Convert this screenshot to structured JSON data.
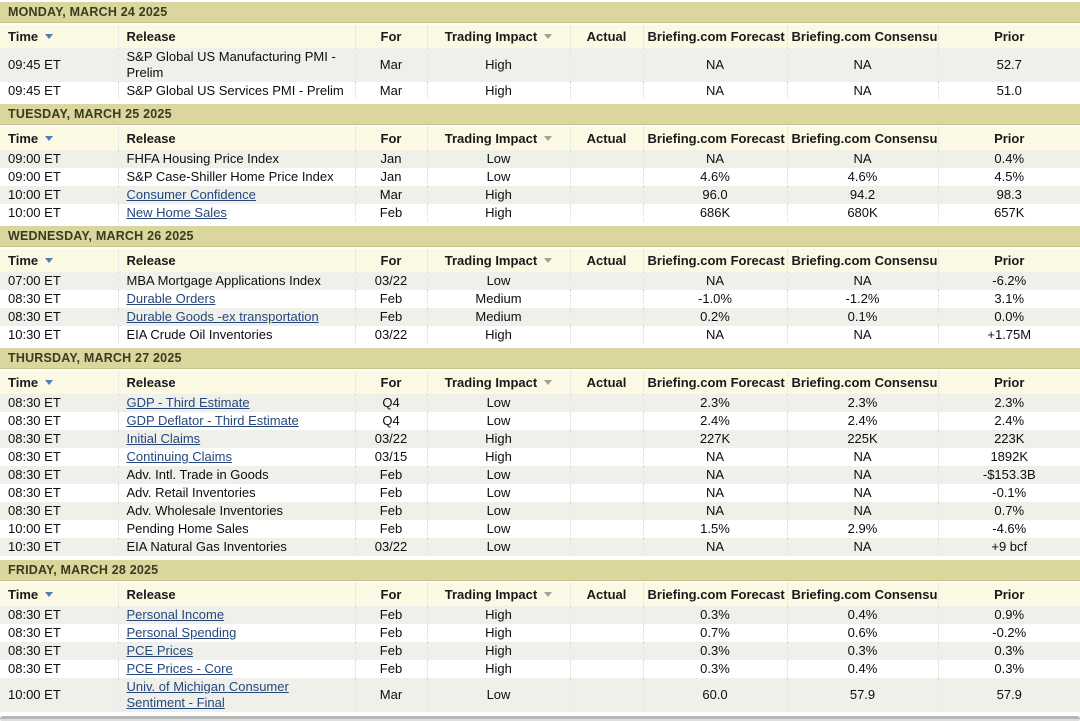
{
  "colors": {
    "day_bar_bg": "#dbd69d",
    "header_bg": "#fbf8e3",
    "row_alt_bg": "#f0f0ea",
    "link": "#26477d",
    "sort_arrow_active": "#4d7fb5",
    "sort_arrow_inactive": "#a0a096"
  },
  "table": {
    "columns": [
      {
        "id": "time",
        "label": "Time",
        "align": "left",
        "sortable": true,
        "arrow": "blue"
      },
      {
        "id": "release",
        "label": "Release",
        "align": "left",
        "sortable": false
      },
      {
        "id": "for",
        "label": "For",
        "align": "center",
        "sortable": false
      },
      {
        "id": "impact",
        "label": "Trading Impact",
        "align": "center",
        "sortable": true,
        "arrow": "gray"
      },
      {
        "id": "actual",
        "label": "Actual",
        "align": "center",
        "sortable": false
      },
      {
        "id": "forecast",
        "label": "Briefing.com Forecast",
        "align": "center",
        "sortable": false
      },
      {
        "id": "consensus",
        "label": "Briefing.com Consensus",
        "align": "center",
        "sortable": false
      },
      {
        "id": "prior",
        "label": "Prior",
        "align": "center",
        "sortable": false
      }
    ]
  },
  "days": [
    {
      "header": "MONDAY, MARCH 24 2025",
      "rows": [
        {
          "time": "09:45 ET",
          "release": "S&P Global US Manufacturing PMI - Prelim",
          "is_link": false,
          "for_period": "Mar",
          "impact": "High",
          "actual": "",
          "forecast": "NA",
          "consensus": "NA",
          "prior": "52.7"
        },
        {
          "time": "09:45 ET",
          "release": "S&P Global US Services PMI - Prelim",
          "is_link": false,
          "for_period": "Mar",
          "impact": "High",
          "actual": "",
          "forecast": "NA",
          "consensus": "NA",
          "prior": "51.0"
        }
      ]
    },
    {
      "header": "TUESDAY, MARCH 25 2025",
      "rows": [
        {
          "time": "09:00 ET",
          "release": "FHFA Housing Price Index",
          "is_link": false,
          "for_period": "Jan",
          "impact": "Low",
          "actual": "",
          "forecast": "NA",
          "consensus": "NA",
          "prior": "0.4%"
        },
        {
          "time": "09:00 ET",
          "release": "S&P Case-Shiller Home Price Index",
          "is_link": false,
          "for_period": "Jan",
          "impact": "Low",
          "actual": "",
          "forecast": "4.6%",
          "consensus": "4.6%",
          "prior": "4.5%"
        },
        {
          "time": "10:00 ET",
          "release": "Consumer Confidence",
          "is_link": true,
          "for_period": "Mar",
          "impact": "High",
          "actual": "",
          "forecast": "96.0",
          "consensus": "94.2",
          "prior": "98.3"
        },
        {
          "time": "10:00 ET",
          "release": "New Home Sales",
          "is_link": true,
          "for_period": "Feb",
          "impact": "High",
          "actual": "",
          "forecast": "686K",
          "consensus": "680K",
          "prior": "657K"
        }
      ]
    },
    {
      "header": "WEDNESDAY, MARCH 26 2025",
      "rows": [
        {
          "time": "07:00 ET",
          "release": "MBA Mortgage Applications Index",
          "is_link": false,
          "for_period": "03/22",
          "impact": "Low",
          "actual": "",
          "forecast": "NA",
          "consensus": "NA",
          "prior": "-6.2%"
        },
        {
          "time": "08:30 ET",
          "release": "Durable Orders",
          "is_link": true,
          "for_period": "Feb",
          "impact": "Medium",
          "actual": "",
          "forecast": "-1.0%",
          "consensus": "-1.2%",
          "prior": "3.1%"
        },
        {
          "time": "08:30 ET",
          "release": "Durable Goods -ex transportation",
          "is_link": true,
          "for_period": "Feb",
          "impact": "Medium",
          "actual": "",
          "forecast": "0.2%",
          "consensus": "0.1%",
          "prior": "0.0%"
        },
        {
          "time": "10:30 ET",
          "release": "EIA Crude Oil Inventories",
          "is_link": false,
          "for_period": "03/22",
          "impact": "High",
          "actual": "",
          "forecast": "NA",
          "consensus": "NA",
          "prior": "+1.75M"
        }
      ]
    },
    {
      "header": "THURSDAY, MARCH 27 2025",
      "rows": [
        {
          "time": "08:30 ET",
          "release": "GDP - Third Estimate",
          "is_link": true,
          "for_period": "Q4",
          "impact": "Low",
          "actual": "",
          "forecast": "2.3%",
          "consensus": "2.3%",
          "prior": "2.3%"
        },
        {
          "time": "08:30 ET",
          "release": "GDP Deflator - Third Estimate",
          "is_link": true,
          "for_period": "Q4",
          "impact": "Low",
          "actual": "",
          "forecast": "2.4%",
          "consensus": "2.4%",
          "prior": "2.4%"
        },
        {
          "time": "08:30 ET",
          "release": "Initial Claims",
          "is_link": true,
          "for_period": "03/22",
          "impact": "High",
          "actual": "",
          "forecast": "227K",
          "consensus": "225K",
          "prior": "223K"
        },
        {
          "time": "08:30 ET",
          "release": "Continuing Claims",
          "is_link": true,
          "for_period": "03/15",
          "impact": "High",
          "actual": "",
          "forecast": "NA",
          "consensus": "NA",
          "prior": "1892K"
        },
        {
          "time": "08:30 ET",
          "release": "Adv. Intl. Trade in Goods",
          "is_link": false,
          "for_period": "Feb",
          "impact": "Low",
          "actual": "",
          "forecast": "NA",
          "consensus": "NA",
          "prior": "-$153.3B"
        },
        {
          "time": "08:30 ET",
          "release": "Adv. Retail Inventories",
          "is_link": false,
          "for_period": "Feb",
          "impact": "Low",
          "actual": "",
          "forecast": "NA",
          "consensus": "NA",
          "prior": "-0.1%"
        },
        {
          "time": "08:30 ET",
          "release": "Adv. Wholesale Inventories",
          "is_link": false,
          "for_period": "Feb",
          "impact": "Low",
          "actual": "",
          "forecast": "NA",
          "consensus": "NA",
          "prior": "0.7%"
        },
        {
          "time": "10:00 ET",
          "release": "Pending Home Sales",
          "is_link": false,
          "for_period": "Feb",
          "impact": "Low",
          "actual": "",
          "forecast": "1.5%",
          "consensus": "2.9%",
          "prior": "-4.6%"
        },
        {
          "time": "10:30 ET",
          "release": "EIA Natural Gas Inventories",
          "is_link": false,
          "for_period": "03/22",
          "impact": "Low",
          "actual": "",
          "forecast": "NA",
          "consensus": "NA",
          "prior": "+9 bcf"
        }
      ]
    },
    {
      "header": "FRIDAY, MARCH 28 2025",
      "rows": [
        {
          "time": "08:30 ET",
          "release": "Personal Income",
          "is_link": true,
          "for_period": "Feb",
          "impact": "High",
          "actual": "",
          "forecast": "0.3%",
          "consensus": "0.4%",
          "prior": "0.9%"
        },
        {
          "time": "08:30 ET",
          "release": "Personal Spending",
          "is_link": true,
          "for_period": "Feb",
          "impact": "High",
          "actual": "",
          "forecast": "0.7%",
          "consensus": "0.6%",
          "prior": "-0.2%"
        },
        {
          "time": "08:30 ET",
          "release": "PCE Prices",
          "is_link": true,
          "for_period": "Feb",
          "impact": "High",
          "actual": "",
          "forecast": "0.3%",
          "consensus": "0.3%",
          "prior": "0.3%"
        },
        {
          "time": "08:30 ET",
          "release": "PCE Prices - Core",
          "is_link": true,
          "for_period": "Feb",
          "impact": "High",
          "actual": "",
          "forecast": "0.3%",
          "consensus": "0.4%",
          "prior": "0.3%"
        },
        {
          "time": "10:00 ET",
          "release": "Univ. of Michigan Consumer Sentiment - Final",
          "is_link": true,
          "for_period": "Mar",
          "impact": "Low",
          "actual": "",
          "forecast": "60.0",
          "consensus": "57.9",
          "prior": "57.9"
        }
      ]
    }
  ]
}
